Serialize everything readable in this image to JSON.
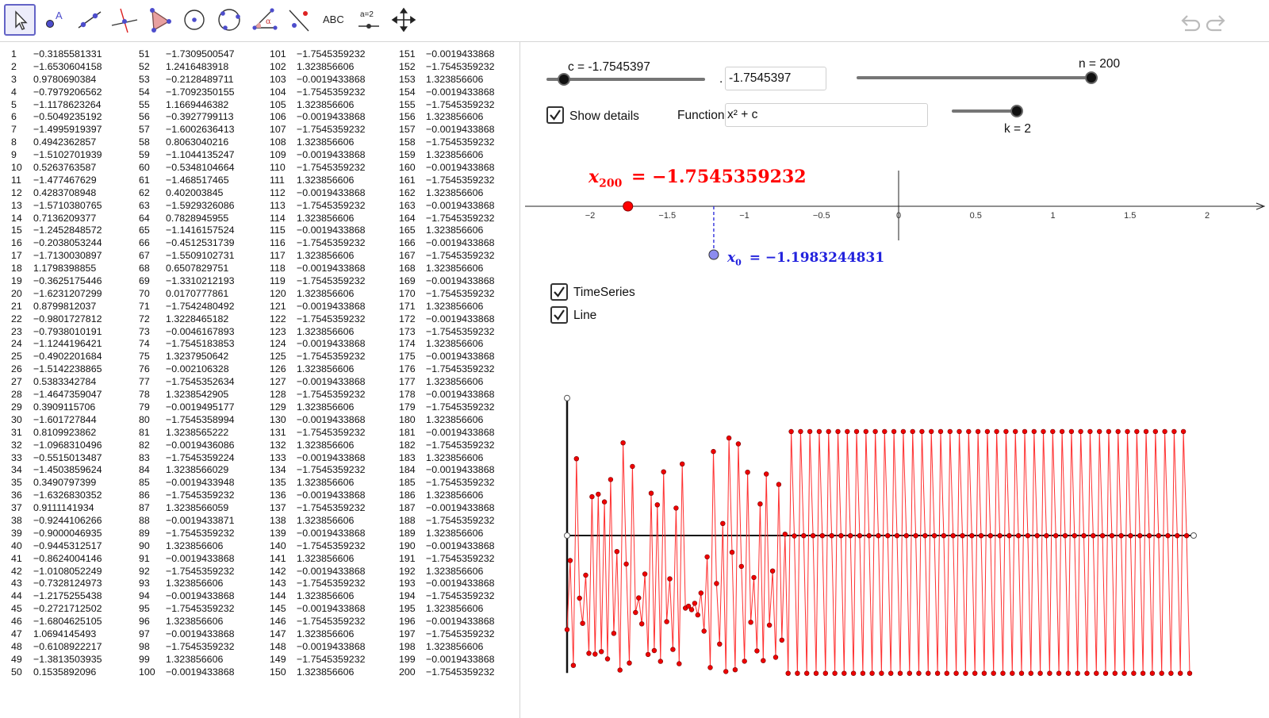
{
  "toolbar": {
    "tools": [
      {
        "name": "move-tool",
        "active": true
      },
      {
        "name": "point-tool"
      },
      {
        "name": "line-tool"
      },
      {
        "name": "perpendicular-line-tool"
      },
      {
        "name": "polygon-tool"
      },
      {
        "name": "circle-center-point-tool"
      },
      {
        "name": "circle-three-points-tool"
      },
      {
        "name": "angle-tool"
      },
      {
        "name": "reflect-tool"
      },
      {
        "name": "text-tool",
        "label": "ABC"
      },
      {
        "name": "slider-tool",
        "label": "a=2"
      },
      {
        "name": "move-graphics-view-tool"
      }
    ]
  },
  "controls": {
    "c_slider_label": "c = -1.7545397",
    "c_input_value": "-1.7545397",
    "c_input_prefix": ".",
    "n_slider_label": "n = 200",
    "k_slider_label": "k = 2",
    "show_details_label": "Show details",
    "function_label": "Function",
    "function_value": "x² + c",
    "timeseries_label": "TimeSeries",
    "line_label": "Line",
    "c_value": -1.7545397,
    "c_range": [
      -2,
      0.25
    ],
    "n_value": 200,
    "n_range": [
      0,
      200
    ],
    "k_value": 2,
    "k_range": [
      1,
      2
    ]
  },
  "numberline": {
    "ticks": [
      "−2",
      "−1.5",
      "−1",
      "−0.5",
      "0",
      "0.5",
      "1",
      "1.5",
      "2"
    ],
    "x_n_label": "x",
    "x_n_sub": "200",
    "x_n_value": "= −1.7545359232",
    "x0_label": "x",
    "x0_sub": "0",
    "x0_value": "= −1.1983244831",
    "x_n_numeric": -1.7545359232,
    "x0_numeric": -1.1983244831
  },
  "colors": {
    "red": "#ff0000",
    "blue": "#2222dd",
    "point_blue": "#8c8cf0"
  },
  "sequence": {
    "columns": [
      [
        [
          "1",
          "−0.3185581331"
        ],
        [
          "2",
          "−1.6530604158"
        ],
        [
          "3",
          "0.9780690384"
        ],
        [
          "4",
          "−0.7979206562"
        ],
        [
          "5",
          "−1.1178623264"
        ],
        [
          "6",
          "−0.5049235192"
        ],
        [
          "7",
          "−1.4995919397"
        ],
        [
          "8",
          "0.4942362857"
        ],
        [
          "9",
          "−1.5102701939"
        ],
        [
          "10",
          "0.5263763587"
        ],
        [
          "11",
          "−1.477467629"
        ],
        [
          "12",
          "0.4283708948"
        ],
        [
          "13",
          "−1.5710380765"
        ],
        [
          "14",
          "0.7136209377"
        ],
        [
          "15",
          "−1.2452848572"
        ],
        [
          "16",
          "−0.2038053244"
        ],
        [
          "17",
          "−1.7130030897"
        ],
        [
          "18",
          "1.1798398855"
        ],
        [
          "19",
          "−0.3625175446"
        ],
        [
          "20",
          "−1.6231207299"
        ],
        [
          "21",
          "0.8799812037"
        ],
        [
          "22",
          "−0.9801727812"
        ],
        [
          "23",
          "−0.7938010191"
        ],
        [
          "24",
          "−1.1244196421"
        ],
        [
          "25",
          "−0.4902201684"
        ],
        [
          "26",
          "−1.5142238865"
        ],
        [
          "27",
          "0.5383342784"
        ],
        [
          "28",
          "−1.4647359047"
        ],
        [
          "29",
          "0.3909115706"
        ],
        [
          "30",
          "−1.601727844"
        ],
        [
          "31",
          "0.8109923862"
        ],
        [
          "32",
          "−1.0968310496"
        ],
        [
          "33",
          "−0.5515013487"
        ],
        [
          "34",
          "−1.4503859624"
        ],
        [
          "35",
          "0.3490797399"
        ],
        [
          "36",
          "−1.6326830352"
        ],
        [
          "37",
          "0.9111141934"
        ],
        [
          "38",
          "−0.9244106266"
        ],
        [
          "39",
          "−0.9000046935"
        ],
        [
          "40",
          "−0.9445312517"
        ],
        [
          "41",
          "−0.8624004146"
        ],
        [
          "42",
          "−1.0108052249"
        ],
        [
          "43",
          "−0.7328124973"
        ],
        [
          "44",
          "−1.2175255438"
        ],
        [
          "45",
          "−0.2721712502"
        ],
        [
          "46",
          "−1.6804625105"
        ],
        [
          "47",
          "1.0694145493"
        ],
        [
          "48",
          "−0.6108922217"
        ],
        [
          "49",
          "−1.3813503935"
        ],
        [
          "50",
          "0.1535892096"
        ]
      ],
      [
        [
          "51",
          "−1.7309500547"
        ],
        [
          "52",
          "1.2416483918"
        ],
        [
          "53",
          "−0.2128489711"
        ],
        [
          "54",
          "−1.7092350155"
        ],
        [
          "55",
          "1.1669446382"
        ],
        [
          "56",
          "−0.3927799113"
        ],
        [
          "57",
          "−1.6002636413"
        ],
        [
          "58",
          "0.8063040216"
        ],
        [
          "59",
          "−1.1044135247"
        ],
        [
          "60",
          "−0.5348104664"
        ],
        [
          "61",
          "−1.468517465"
        ],
        [
          "62",
          "0.402003845"
        ],
        [
          "63",
          "−1.5929326086"
        ],
        [
          "64",
          "0.7828945955"
        ],
        [
          "65",
          "−1.1416157524"
        ],
        [
          "66",
          "−0.4512531739"
        ],
        [
          "67",
          "−1.5509102731"
        ],
        [
          "68",
          "0.6507829751"
        ],
        [
          "69",
          "−1.3310212193"
        ],
        [
          "70",
          "0.0170777861"
        ],
        [
          "71",
          "−1.7542480492"
        ],
        [
          "72",
          "1.3228465182"
        ],
        [
          "73",
          "−0.0046167893"
        ],
        [
          "74",
          "−1.7545183853"
        ],
        [
          "75",
          "1.3237950642"
        ],
        [
          "76",
          "−0.002106328"
        ],
        [
          "77",
          "−1.7545352634"
        ],
        [
          "78",
          "1.3238542905"
        ],
        [
          "79",
          "−0.0019495177"
        ],
        [
          "80",
          "−1.7545358994"
        ],
        [
          "81",
          "1.3238565222"
        ],
        [
          "82",
          "−0.0019436086"
        ],
        [
          "83",
          "−1.7545359224"
        ],
        [
          "84",
          "1.3238566029"
        ],
        [
          "85",
          "−0.0019433948"
        ],
        [
          "86",
          "−1.7545359232"
        ],
        [
          "87",
          "1.3238566059"
        ],
        [
          "88",
          "−0.0019433871"
        ],
        [
          "89",
          "−1.7545359232"
        ],
        [
          "90",
          "1.323856606"
        ],
        [
          "91",
          "−0.0019433868"
        ],
        [
          "92",
          "−1.7545359232"
        ],
        [
          "93",
          "1.323856606"
        ],
        [
          "94",
          "−0.0019433868"
        ],
        [
          "95",
          "−1.7545359232"
        ],
        [
          "96",
          "1.323856606"
        ],
        [
          "97",
          "−0.0019433868"
        ],
        [
          "98",
          "−1.7545359232"
        ],
        [
          "99",
          "1.323856606"
        ],
        [
          "100",
          "−0.0019433868"
        ]
      ],
      [
        [
          "101",
          "−1.7545359232"
        ],
        [
          "102",
          "1.323856606"
        ],
        [
          "103",
          "−0.0019433868"
        ],
        [
          "104",
          "−1.7545359232"
        ],
        [
          "105",
          "1.323856606"
        ],
        [
          "106",
          "−0.0019433868"
        ],
        [
          "107",
          "−1.7545359232"
        ],
        [
          "108",
          "1.323856606"
        ],
        [
          "109",
          "−0.0019433868"
        ],
        [
          "110",
          "−1.7545359232"
        ],
        [
          "111",
          "1.323856606"
        ],
        [
          "112",
          "−0.0019433868"
        ],
        [
          "113",
          "−1.7545359232"
        ],
        [
          "114",
          "1.323856606"
        ],
        [
          "115",
          "−0.0019433868"
        ],
        [
          "116",
          "−1.7545359232"
        ],
        [
          "117",
          "1.323856606"
        ],
        [
          "118",
          "−0.0019433868"
        ],
        [
          "119",
          "−1.7545359232"
        ],
        [
          "120",
          "1.323856606"
        ],
        [
          "121",
          "−0.0019433868"
        ],
        [
          "122",
          "−1.7545359232"
        ],
        [
          "123",
          "1.323856606"
        ],
        [
          "124",
          "−0.0019433868"
        ],
        [
          "125",
          "−1.7545359232"
        ],
        [
          "126",
          "1.323856606"
        ],
        [
          "127",
          "−0.0019433868"
        ],
        [
          "128",
          "−1.7545359232"
        ],
        [
          "129",
          "1.323856606"
        ],
        [
          "130",
          "−0.0019433868"
        ],
        [
          "131",
          "−1.7545359232"
        ],
        [
          "132",
          "1.323856606"
        ],
        [
          "133",
          "−0.0019433868"
        ],
        [
          "134",
          "−1.7545359232"
        ],
        [
          "135",
          "1.323856606"
        ],
        [
          "136",
          "−0.0019433868"
        ],
        [
          "137",
          "−1.7545359232"
        ],
        [
          "138",
          "1.323856606"
        ],
        [
          "139",
          "−0.0019433868"
        ],
        [
          "140",
          "−1.7545359232"
        ],
        [
          "141",
          "1.323856606"
        ],
        [
          "142",
          "−0.0019433868"
        ],
        [
          "143",
          "−1.7545359232"
        ],
        [
          "144",
          "1.323856606"
        ],
        [
          "145",
          "−0.0019433868"
        ],
        [
          "146",
          "−1.7545359232"
        ],
        [
          "147",
          "1.323856606"
        ],
        [
          "148",
          "−0.0019433868"
        ],
        [
          "149",
          "−1.7545359232"
        ],
        [
          "150",
          "1.323856606"
        ]
      ],
      [
        [
          "151",
          "−0.0019433868"
        ],
        [
          "152",
          "−1.7545359232"
        ],
        [
          "153",
          "1.323856606"
        ],
        [
          "154",
          "−0.0019433868"
        ],
        [
          "155",
          "−1.7545359232"
        ],
        [
          "156",
          "1.323856606"
        ],
        [
          "157",
          "−0.0019433868"
        ],
        [
          "158",
          "−1.7545359232"
        ],
        [
          "159",
          "1.323856606"
        ],
        [
          "160",
          "−0.0019433868"
        ],
        [
          "161",
          "−1.7545359232"
        ],
        [
          "162",
          "1.323856606"
        ],
        [
          "163",
          "−0.0019433868"
        ],
        [
          "164",
          "−1.7545359232"
        ],
        [
          "165",
          "1.323856606"
        ],
        [
          "166",
          "−0.0019433868"
        ],
        [
          "167",
          "−1.7545359232"
        ],
        [
          "168",
          "1.323856606"
        ],
        [
          "169",
          "−0.0019433868"
        ],
        [
          "170",
          "−1.7545359232"
        ],
        [
          "171",
          "1.323856606"
        ],
        [
          "172",
          "−0.0019433868"
        ],
        [
          "173",
          "−1.7545359232"
        ],
        [
          "174",
          "1.323856606"
        ],
        [
          "175",
          "−0.0019433868"
        ],
        [
          "176",
          "−1.7545359232"
        ],
        [
          "177",
          "1.323856606"
        ],
        [
          "178",
          "−0.0019433868"
        ],
        [
          "179",
          "−1.7545359232"
        ],
        [
          "180",
          "1.323856606"
        ],
        [
          "181",
          "−0.0019433868"
        ],
        [
          "182",
          "−1.7545359232"
        ],
        [
          "183",
          "1.323856606"
        ],
        [
          "184",
          "−0.0019433868"
        ],
        [
          "185",
          "−1.7545359232"
        ],
        [
          "186",
          "1.323856606"
        ],
        [
          "187",
          "−0.0019433868"
        ],
        [
          "188",
          "−1.7545359232"
        ],
        [
          "189",
          "1.323856606"
        ],
        [
          "190",
          "−0.0019433868"
        ],
        [
          "191",
          "−1.7545359232"
        ],
        [
          "192",
          "1.323856606"
        ],
        [
          "193",
          "−0.0019433868"
        ],
        [
          "194",
          "−1.7545359232"
        ],
        [
          "195",
          "1.323856606"
        ],
        [
          "196",
          "−0.0019433868"
        ],
        [
          "197",
          "−1.7545359232"
        ],
        [
          "198",
          "1.323856606"
        ],
        [
          "199",
          "−0.0019433868"
        ],
        [
          "200",
          "−1.7545359232"
        ]
      ]
    ]
  },
  "chart_data": {
    "type": "line",
    "title": "",
    "series_name": "TimeSeries",
    "x": "index 0..200",
    "x0": -1.1983244831,
    "ylim": [
      -2,
      1.5
    ],
    "note": "y values are x_n listed in sequence.columns (x_1..x_200), starting from x0"
  }
}
